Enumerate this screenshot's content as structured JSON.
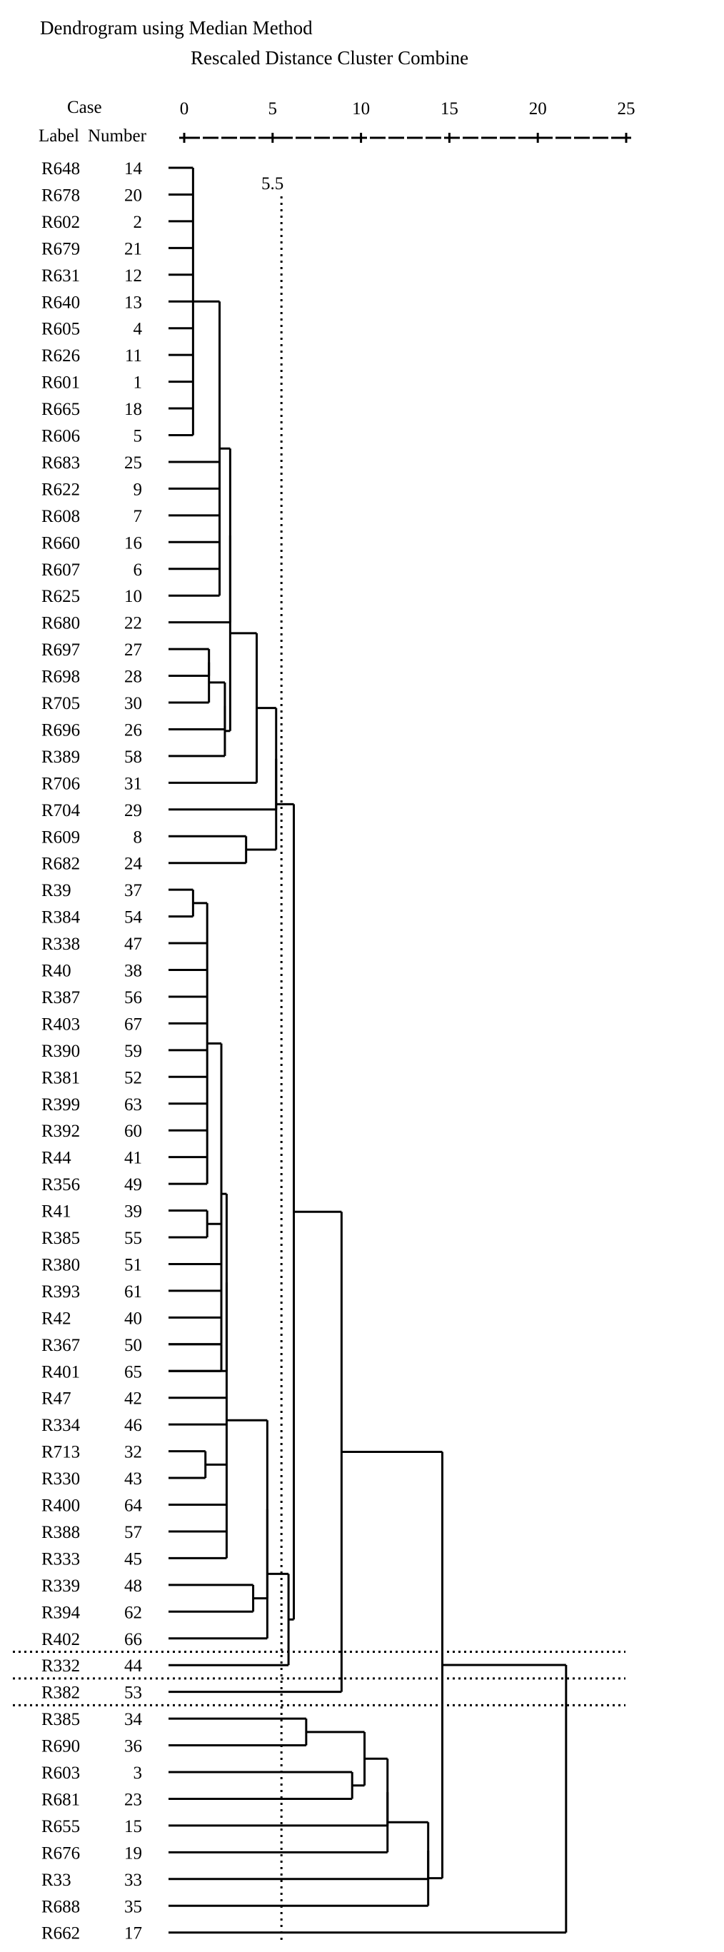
{
  "chart_data": {
    "type": "dendrogram",
    "title": "Dendrogram using Median Method",
    "subtitle": "Rescaled Distance Cluster Combine",
    "header": {
      "case": "Case",
      "label": "Label",
      "number": "Number"
    },
    "axis": {
      "ticks": [
        0,
        5,
        10,
        15,
        20,
        25
      ],
      "range": [
        0,
        25
      ]
    },
    "threshold": {
      "value": 5.5,
      "label": "5.5"
    },
    "leaves": [
      {
        "label": "R648",
        "number": "14"
      },
      {
        "label": "R678",
        "number": "20"
      },
      {
        "label": "R602",
        "number": "2"
      },
      {
        "label": "R679",
        "number": "21"
      },
      {
        "label": "R631",
        "number": "12"
      },
      {
        "label": "R640",
        "number": "13"
      },
      {
        "label": "R605",
        "number": "4"
      },
      {
        "label": "R626",
        "number": "11"
      },
      {
        "label": "R601",
        "number": "1"
      },
      {
        "label": "R665",
        "number": "18"
      },
      {
        "label": "R606",
        "number": "5"
      },
      {
        "label": "R683",
        "number": "25"
      },
      {
        "label": "R622",
        "number": "9"
      },
      {
        "label": "R608",
        "number": "7"
      },
      {
        "label": "R660",
        "number": "16"
      },
      {
        "label": "R607",
        "number": "6"
      },
      {
        "label": "R625",
        "number": "10"
      },
      {
        "label": "R680",
        "number": "22"
      },
      {
        "label": "R697",
        "number": "27"
      },
      {
        "label": "R698",
        "number": "28"
      },
      {
        "label": "R705",
        "number": "30"
      },
      {
        "label": "R696",
        "number": "26"
      },
      {
        "label": "R389",
        "number": "58"
      },
      {
        "label": "R706",
        "number": "31"
      },
      {
        "label": "R704",
        "number": "29"
      },
      {
        "label": "R609",
        "number": "8"
      },
      {
        "label": "R682",
        "number": "24"
      },
      {
        "label": "R39",
        "number": "37"
      },
      {
        "label": "R384",
        "number": "54"
      },
      {
        "label": "R338",
        "number": "47"
      },
      {
        "label": "R40",
        "number": "38"
      },
      {
        "label": "R387",
        "number": "56"
      },
      {
        "label": "R403",
        "number": "67"
      },
      {
        "label": "R390",
        "number": "59"
      },
      {
        "label": "R381",
        "number": "52"
      },
      {
        "label": "R399",
        "number": "63"
      },
      {
        "label": "R392",
        "number": "60"
      },
      {
        "label": "R44",
        "number": "41"
      },
      {
        "label": "R356",
        "number": "49"
      },
      {
        "label": "R41",
        "number": "39"
      },
      {
        "label": "R385",
        "number": "55"
      },
      {
        "label": "R380",
        "number": "51"
      },
      {
        "label": "R393",
        "number": "61"
      },
      {
        "label": "R42",
        "number": "40"
      },
      {
        "label": "R367",
        "number": "50"
      },
      {
        "label": "R401",
        "number": "65"
      },
      {
        "label": "R47",
        "number": "42"
      },
      {
        "label": "R334",
        "number": "46"
      },
      {
        "label": "R713",
        "number": "32"
      },
      {
        "label": "R330",
        "number": "43"
      },
      {
        "label": "R400",
        "number": "64"
      },
      {
        "label": "R388",
        "number": "57"
      },
      {
        "label": "R333",
        "number": "45"
      },
      {
        "label": "R339",
        "number": "48"
      },
      {
        "label": "R394",
        "number": "62"
      },
      {
        "label": "R402",
        "number": "66"
      },
      {
        "label": "R332",
        "number": "44"
      },
      {
        "label": "R382",
        "number": "53"
      },
      {
        "label": "R385",
        "number": "34"
      },
      {
        "label": "R690",
        "number": "36"
      },
      {
        "label": "R603",
        "number": "3"
      },
      {
        "label": "R681",
        "number": "23"
      },
      {
        "label": "R655",
        "number": "15"
      },
      {
        "label": "R676",
        "number": "19"
      },
      {
        "label": "R33",
        "number": "33"
      },
      {
        "label": "R688",
        "number": "35"
      },
      {
        "label": "R662",
        "number": "17"
      }
    ],
    "merges": [
      {
        "members": [
          0,
          1,
          2,
          3,
          4,
          5,
          6,
          7,
          8,
          9,
          10
        ],
        "distance": 0.5
      },
      {
        "members": [
          "m0",
          11,
          12,
          13,
          14,
          15,
          16
        ],
        "distance": 2.0
      },
      {
        "members": [
          18,
          19
        ],
        "distance": 1.4
      },
      {
        "members": [
          "m2",
          20
        ],
        "distance": 1.4
      },
      {
        "members": [
          "m3",
          21
        ],
        "distance": 2.3
      },
      {
        "members": [
          "m4",
          22
        ],
        "distance": 2.3
      },
      {
        "members": [
          "m1",
          17
        ],
        "distance": 2.6
      },
      {
        "members": [
          "m6",
          "m5"
        ],
        "distance": 2.6
      },
      {
        "members": [
          "m7",
          23
        ],
        "distance": 4.1
      },
      {
        "members": [
          "m8",
          24
        ],
        "distance": 5.2
      },
      {
        "members": [
          25,
          26
        ],
        "distance": 3.5
      },
      {
        "members": [
          "m9",
          "m10"
        ],
        "distance": 5.2
      },
      {
        "members": [
          27,
          28
        ],
        "distance": 0.5
      },
      {
        "members": [
          "m12",
          29,
          30,
          31,
          32,
          33,
          34,
          35,
          36,
          37,
          38
        ],
        "distance": 1.3
      },
      {
        "members": [
          39,
          40
        ],
        "distance": 1.3
      },
      {
        "members": [
          "m13",
          "m14",
          41,
          42,
          43,
          44
        ],
        "distance": 2.1
      },
      {
        "members": [
          45,
          44
        ],
        "distance": 2.1
      },
      {
        "members": [
          "m15",
          45
        ],
        "distance": 2.4
      },
      {
        "members": [
          48,
          49
        ],
        "distance": 1.2
      },
      {
        "members": [
          "m17",
          46,
          47,
          "m18",
          50,
          51,
          52
        ],
        "distance": 2.4
      },
      {
        "members": [
          53,
          54
        ],
        "distance": 3.9
      },
      {
        "members": [
          "m19",
          "m20"
        ],
        "distance": 4.7
      },
      {
        "members": [
          "m21",
          55
        ],
        "distance": 4.7
      },
      {
        "members": [
          "m22",
          56
        ],
        "distance": 5.9
      },
      {
        "members": [
          "m11",
          "m23"
        ],
        "distance": 6.2
      },
      {
        "members": [
          "m24",
          57
        ],
        "distance": 8.9
      },
      {
        "members": [
          58,
          59
        ],
        "distance": 6.9
      },
      {
        "members": [
          60,
          61
        ],
        "distance": 9.5
      },
      {
        "members": [
          "m26",
          "m27"
        ],
        "distance": 10.2
      },
      {
        "members": [
          "m28",
          62
        ],
        "distance": 11.5
      },
      {
        "members": [
          "m29",
          63
        ],
        "distance": 11.5
      },
      {
        "members": [
          "m30",
          64
        ],
        "distance": 13.8
      },
      {
        "members": [
          "m31",
          65
        ],
        "distance": 13.8
      },
      {
        "members": [
          "m25",
          "m32"
        ],
        "distance": 14.6
      },
      {
        "members": [
          "m33",
          66
        ],
        "distance": 21.6
      }
    ]
  }
}
